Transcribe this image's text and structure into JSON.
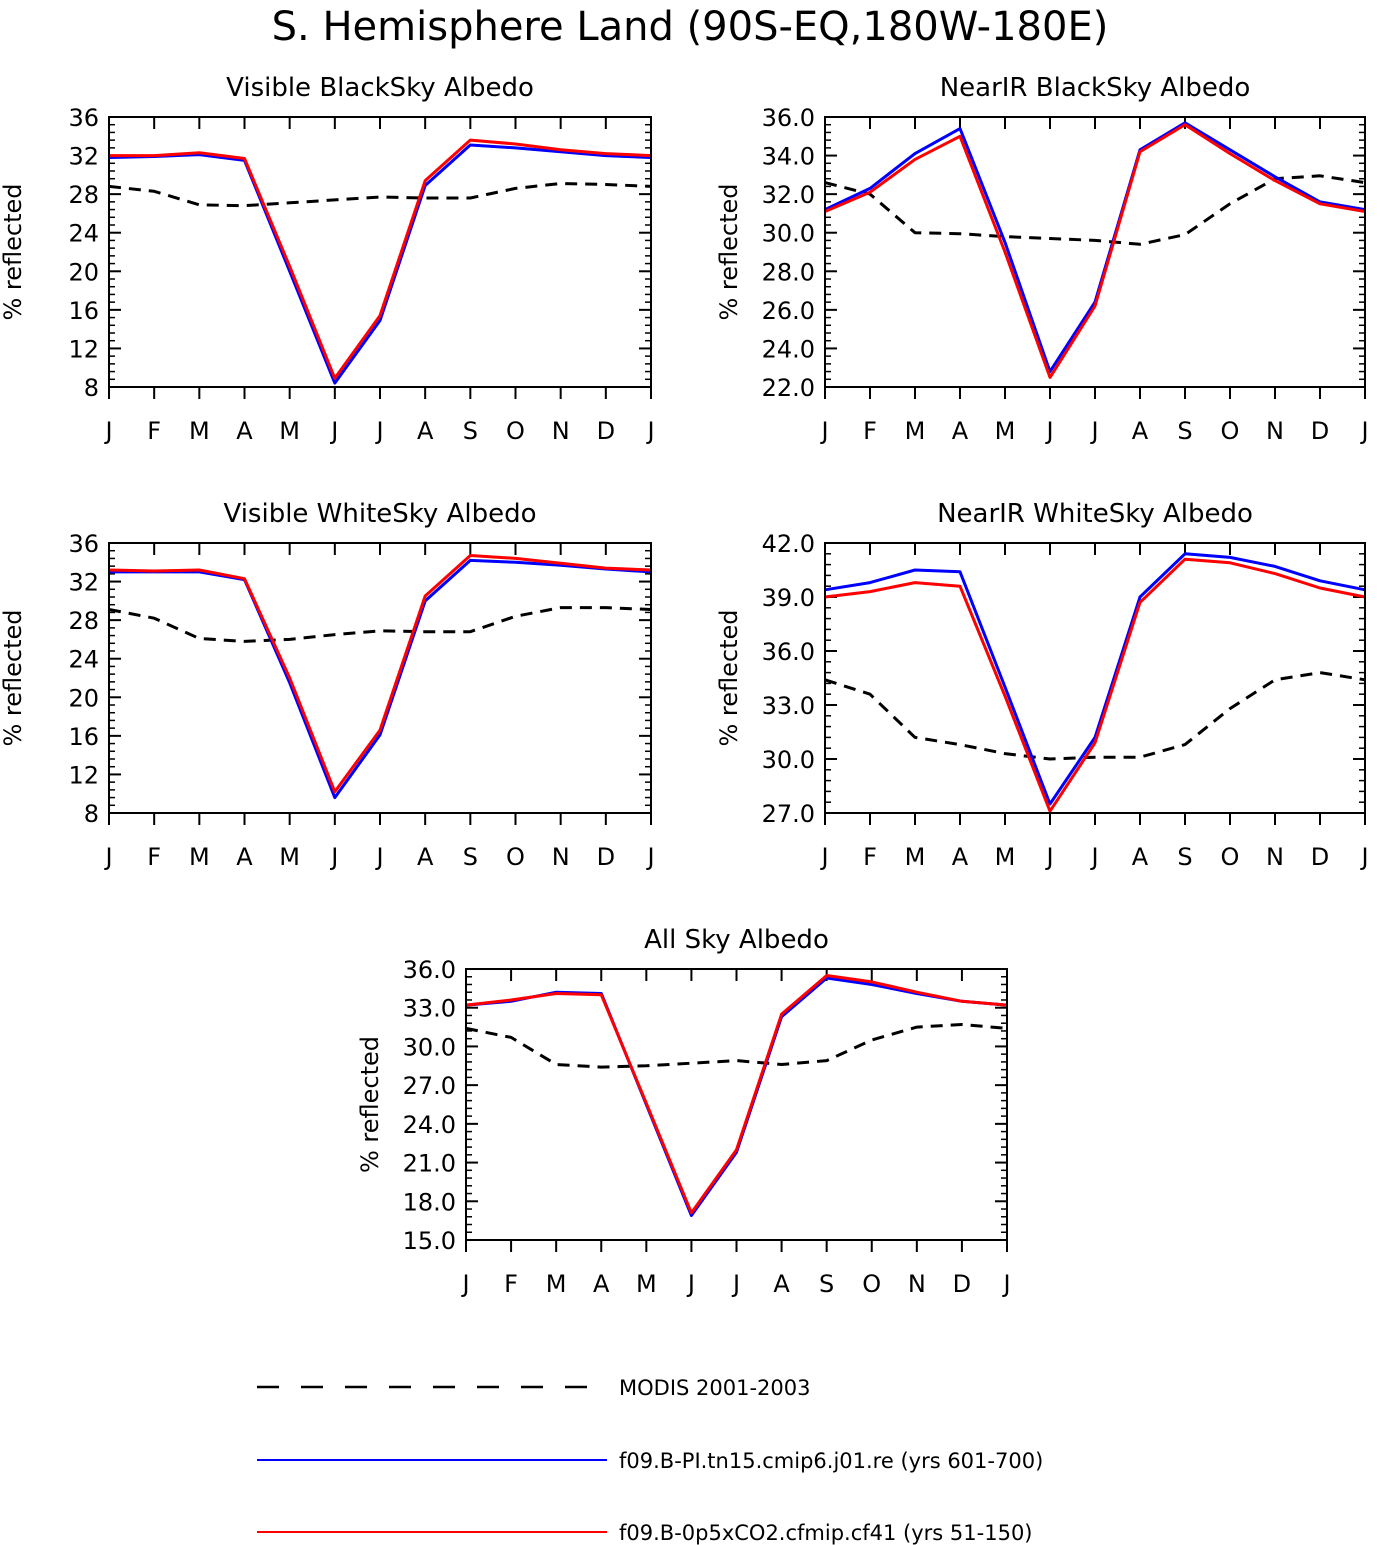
{
  "main_title": "S. Hemisphere Land (90S-EQ,180W-180E)",
  "ylabel": "% reflected",
  "months": [
    "J",
    "F",
    "M",
    "A",
    "M",
    "J",
    "J",
    "A",
    "S",
    "O",
    "N",
    "D",
    "J"
  ],
  "colors": {
    "obs": "#000000",
    "model1": "#0000ff",
    "model2": "#ff0000"
  },
  "legend": [
    {
      "key": "obs",
      "label": "MODIS 2001-2003",
      "style": "dashed"
    },
    {
      "key": "model1",
      "label": "f09.B-PI.tn15.cmip6.j01.re (yrs 601-700)",
      "style": "solid"
    },
    {
      "key": "model2",
      "label": "f09.B-0p5xCO2.cfmip.cf41 (yrs 51-150)",
      "style": "solid"
    }
  ],
  "chart_data": [
    {
      "type": "line",
      "title": "Visible BlackSky Albedo",
      "ylabel": "% reflected",
      "ylim": [
        8,
        36
      ],
      "yticks": [
        "8",
        "12",
        "16",
        "20",
        "24",
        "28",
        "32",
        "36"
      ],
      "categories": [
        "J",
        "F",
        "M",
        "A",
        "M",
        "J",
        "J",
        "A",
        "S",
        "O",
        "N",
        "D",
        "J"
      ],
      "series": [
        {
          "key": "obs",
          "values": [
            28.8,
            28.3,
            26.9,
            26.8,
            27.1,
            27.4,
            27.7,
            27.6,
            27.6,
            28.6,
            29.1,
            29.0,
            28.8
          ]
        },
        {
          "key": "model1",
          "values": [
            31.8,
            31.9,
            32.1,
            31.5,
            20.0,
            8.4,
            14.9,
            28.9,
            33.1,
            32.8,
            32.4,
            32.0,
            31.8
          ]
        },
        {
          "key": "model2",
          "values": [
            32.0,
            32.0,
            32.3,
            31.7,
            20.5,
            8.9,
            15.4,
            29.4,
            33.6,
            33.2,
            32.6,
            32.2,
            32.0
          ]
        }
      ]
    },
    {
      "type": "line",
      "title": "NearIR BlackSky Albedo",
      "ylabel": "% reflected",
      "ylim": [
        22,
        36
      ],
      "yticks": [
        "22.0",
        "24.0",
        "26.0",
        "28.0",
        "30.0",
        "32.0",
        "34.0",
        "36.0"
      ],
      "categories": [
        "J",
        "F",
        "M",
        "A",
        "M",
        "J",
        "J",
        "A",
        "S",
        "O",
        "N",
        "D",
        "J"
      ],
      "series": [
        {
          "key": "obs",
          "values": [
            32.6,
            32.0,
            30.0,
            29.95,
            29.8,
            29.7,
            29.6,
            29.4,
            29.9,
            31.5,
            32.8,
            32.95,
            32.6
          ]
        },
        {
          "key": "model1",
          "values": [
            31.2,
            32.3,
            34.1,
            35.4,
            29.5,
            22.8,
            26.4,
            34.3,
            35.7,
            34.3,
            32.9,
            31.6,
            31.2
          ]
        },
        {
          "key": "model2",
          "values": [
            31.1,
            32.1,
            33.8,
            35.0,
            29.0,
            22.5,
            26.2,
            34.2,
            35.6,
            34.1,
            32.7,
            31.5,
            31.1
          ]
        }
      ]
    },
    {
      "type": "line",
      "title": "Visible WhiteSky Albedo",
      "ylabel": "% reflected",
      "ylim": [
        8,
        36
      ],
      "yticks": [
        "8",
        "12",
        "16",
        "20",
        "24",
        "28",
        "32",
        "36"
      ],
      "categories": [
        "J",
        "F",
        "M",
        "A",
        "M",
        "J",
        "J",
        "A",
        "S",
        "O",
        "N",
        "D",
        "J"
      ],
      "series": [
        {
          "key": "obs",
          "values": [
            29.1,
            28.2,
            26.1,
            25.8,
            26.0,
            26.5,
            26.9,
            26.8,
            26.8,
            28.4,
            29.3,
            29.3,
            29.1
          ]
        },
        {
          "key": "model1",
          "values": [
            33.0,
            33.0,
            33.0,
            32.2,
            21.5,
            9.6,
            16.1,
            30.0,
            34.2,
            34.0,
            33.7,
            33.3,
            33.0
          ]
        },
        {
          "key": "model2",
          "values": [
            33.2,
            33.1,
            33.2,
            32.3,
            22.0,
            10.2,
            16.6,
            30.5,
            34.7,
            34.4,
            33.9,
            33.4,
            33.2
          ]
        }
      ]
    },
    {
      "type": "line",
      "title": "NearIR WhiteSky Albedo",
      "ylabel": "% reflected",
      "ylim": [
        27,
        42
      ],
      "yticks": [
        "27.0",
        "30.0",
        "33.0",
        "36.0",
        "39.0",
        "42.0"
      ],
      "categories": [
        "J",
        "F",
        "M",
        "A",
        "M",
        "J",
        "J",
        "A",
        "S",
        "O",
        "N",
        "D",
        "J"
      ],
      "series": [
        {
          "key": "obs",
          "values": [
            34.4,
            33.6,
            31.2,
            30.8,
            30.3,
            30.0,
            30.1,
            30.1,
            30.8,
            32.8,
            34.4,
            34.8,
            34.4
          ]
        },
        {
          "key": "model1",
          "values": [
            39.4,
            39.8,
            40.5,
            40.4,
            34.0,
            27.5,
            31.2,
            39.0,
            41.4,
            41.2,
            40.7,
            39.9,
            39.4
          ]
        },
        {
          "key": "model2",
          "values": [
            39.0,
            39.3,
            39.8,
            39.6,
            33.5,
            27.1,
            30.9,
            38.7,
            41.1,
            40.9,
            40.3,
            39.5,
            39.0
          ]
        }
      ]
    },
    {
      "type": "line",
      "title": "All Sky Albedo",
      "ylabel": "% reflected",
      "ylim": [
        15,
        36
      ],
      "yticks": [
        "15.0",
        "18.0",
        "21.0",
        "24.0",
        "27.0",
        "30.0",
        "33.0",
        "36.0"
      ],
      "categories": [
        "J",
        "F",
        "M",
        "A",
        "M",
        "J",
        "J",
        "A",
        "S",
        "O",
        "N",
        "D",
        "J"
      ],
      "series": [
        {
          "key": "obs",
          "values": [
            31.4,
            30.7,
            28.6,
            28.4,
            28.5,
            28.7,
            28.9,
            28.6,
            28.9,
            30.5,
            31.5,
            31.7,
            31.4
          ]
        },
        {
          "key": "model1",
          "values": [
            33.2,
            33.5,
            34.2,
            34.1,
            25.5,
            16.9,
            21.8,
            32.3,
            35.3,
            34.8,
            34.1,
            33.5,
            33.2
          ]
        },
        {
          "key": "model2",
          "values": [
            33.2,
            33.6,
            34.1,
            34.0,
            25.6,
            17.1,
            22.0,
            32.5,
            35.5,
            35.0,
            34.2,
            33.5,
            33.2
          ]
        }
      ]
    }
  ]
}
